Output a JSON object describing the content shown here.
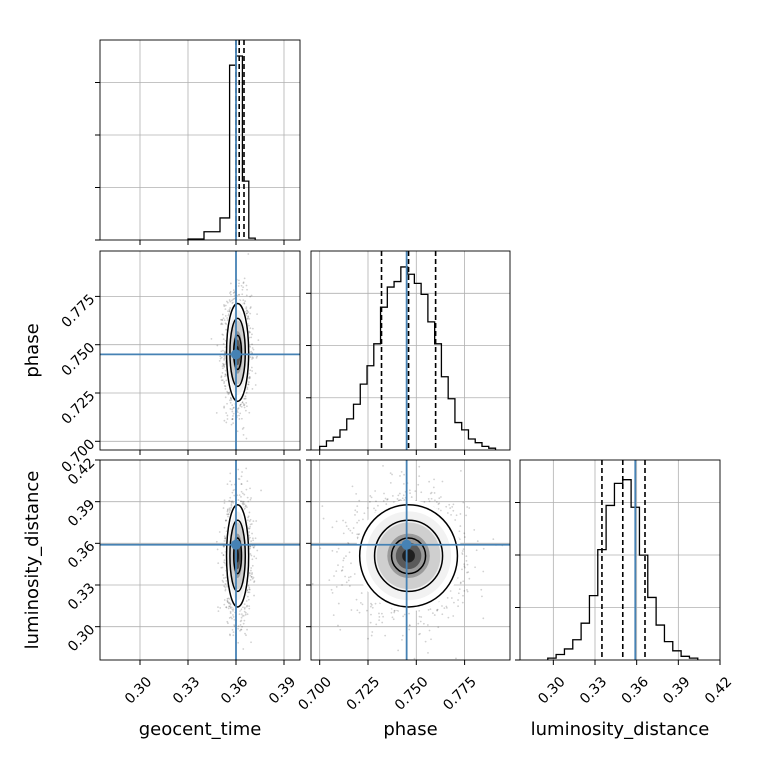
{
  "chart_data": {
    "type": "corner",
    "parameters": [
      "geocent_time",
      "phase",
      "luminosity_distance"
    ],
    "axis_labels": {
      "geocent_time": "geocent_time",
      "phase": "phase",
      "luminosity_distance": "luminosity_distance"
    },
    "ranges": {
      "geocent_time": [
        0.275,
        0.4
      ],
      "phase": [
        0.6955,
        0.7985
      ],
      "luminosity_distance": [
        0.276,
        0.42
      ]
    },
    "ticks": {
      "geocent_time": [
        "0.30",
        "0.33",
        "0.36",
        "0.39"
      ],
      "phase": [
        "0.700",
        "0.725",
        "0.750",
        "0.775"
      ],
      "luminosity_distance": [
        "0.30",
        "0.33",
        "0.36",
        "0.39",
        "0.42"
      ]
    },
    "truths": {
      "geocent_time": 0.36,
      "phase": 0.745,
      "luminosity_distance": 0.359
    },
    "quantiles": {
      "geocent_time": [
        0.36,
        0.362,
        0.365
      ],
      "phase": [
        0.732,
        0.746,
        0.76
      ],
      "luminosity_distance": [
        0.335,
        0.35,
        0.366
      ]
    },
    "histograms": {
      "geocent_time": {
        "bins": [
          [
            0.33,
            0.34,
            0.005
          ],
          [
            0.34,
            0.35,
            0.045
          ],
          [
            0.35,
            0.356,
            0.12
          ],
          [
            0.356,
            0.36,
            0.95
          ],
          [
            0.36,
            0.364,
            1.0
          ],
          [
            0.364,
            0.368,
            0.32
          ],
          [
            0.368,
            0.372,
            0.01
          ]
        ]
      },
      "phase": {
        "bins": [
          [
            0.7,
            0.7035,
            0.02
          ],
          [
            0.7035,
            0.707,
            0.05
          ],
          [
            0.707,
            0.7105,
            0.07
          ],
          [
            0.7105,
            0.714,
            0.11
          ],
          [
            0.714,
            0.7175,
            0.17
          ],
          [
            0.7175,
            0.721,
            0.25
          ],
          [
            0.721,
            0.7245,
            0.36
          ],
          [
            0.7245,
            0.728,
            0.46
          ],
          [
            0.728,
            0.7315,
            0.58
          ],
          [
            0.7315,
            0.735,
            0.78
          ],
          [
            0.735,
            0.7385,
            0.89
          ],
          [
            0.7385,
            0.742,
            0.92
          ],
          [
            0.742,
            0.7455,
            1.0
          ],
          [
            0.7455,
            0.749,
            0.96
          ],
          [
            0.749,
            0.7525,
            0.91
          ],
          [
            0.7525,
            0.756,
            0.85
          ],
          [
            0.756,
            0.7595,
            0.7
          ],
          [
            0.7595,
            0.763,
            0.58
          ],
          [
            0.763,
            0.7665,
            0.4
          ],
          [
            0.7665,
            0.77,
            0.28
          ],
          [
            0.77,
            0.7735,
            0.15
          ],
          [
            0.7735,
            0.777,
            0.11
          ],
          [
            0.777,
            0.7805,
            0.06
          ],
          [
            0.7805,
            0.784,
            0.04
          ],
          [
            0.784,
            0.7875,
            0.02
          ],
          [
            0.7875,
            0.791,
            0.01
          ]
        ]
      },
      "luminosity_distance": {
        "bins": [
          [
            0.296,
            0.302,
            0.01
          ],
          [
            0.302,
            0.308,
            0.03
          ],
          [
            0.308,
            0.314,
            0.06
          ],
          [
            0.314,
            0.32,
            0.11
          ],
          [
            0.32,
            0.326,
            0.2
          ],
          [
            0.326,
            0.332,
            0.35
          ],
          [
            0.332,
            0.338,
            0.6
          ],
          [
            0.338,
            0.344,
            0.84
          ],
          [
            0.344,
            0.35,
            0.96
          ],
          [
            0.35,
            0.356,
            0.98
          ],
          [
            0.356,
            0.362,
            0.83
          ],
          [
            0.362,
            0.368,
            0.57
          ],
          [
            0.368,
            0.374,
            0.34
          ],
          [
            0.374,
            0.38,
            0.19
          ],
          [
            0.38,
            0.386,
            0.1
          ],
          [
            0.386,
            0.392,
            0.05
          ],
          [
            0.392,
            0.398,
            0.02
          ],
          [
            0.398,
            0.404,
            0.01
          ]
        ]
      }
    },
    "posterior_center": {
      "geocent_time": 0.361,
      "phase": 0.746,
      "luminosity_distance": 0.351
    },
    "posterior_spread": {
      "geocent_time": 0.003,
      "phase": 0.011,
      "luminosity_distance": 0.016
    },
    "colors": {
      "truth": "#4682b4",
      "hist": "#000000",
      "contour": "#000000",
      "grid": "#b0b0b0"
    },
    "grid": true
  }
}
